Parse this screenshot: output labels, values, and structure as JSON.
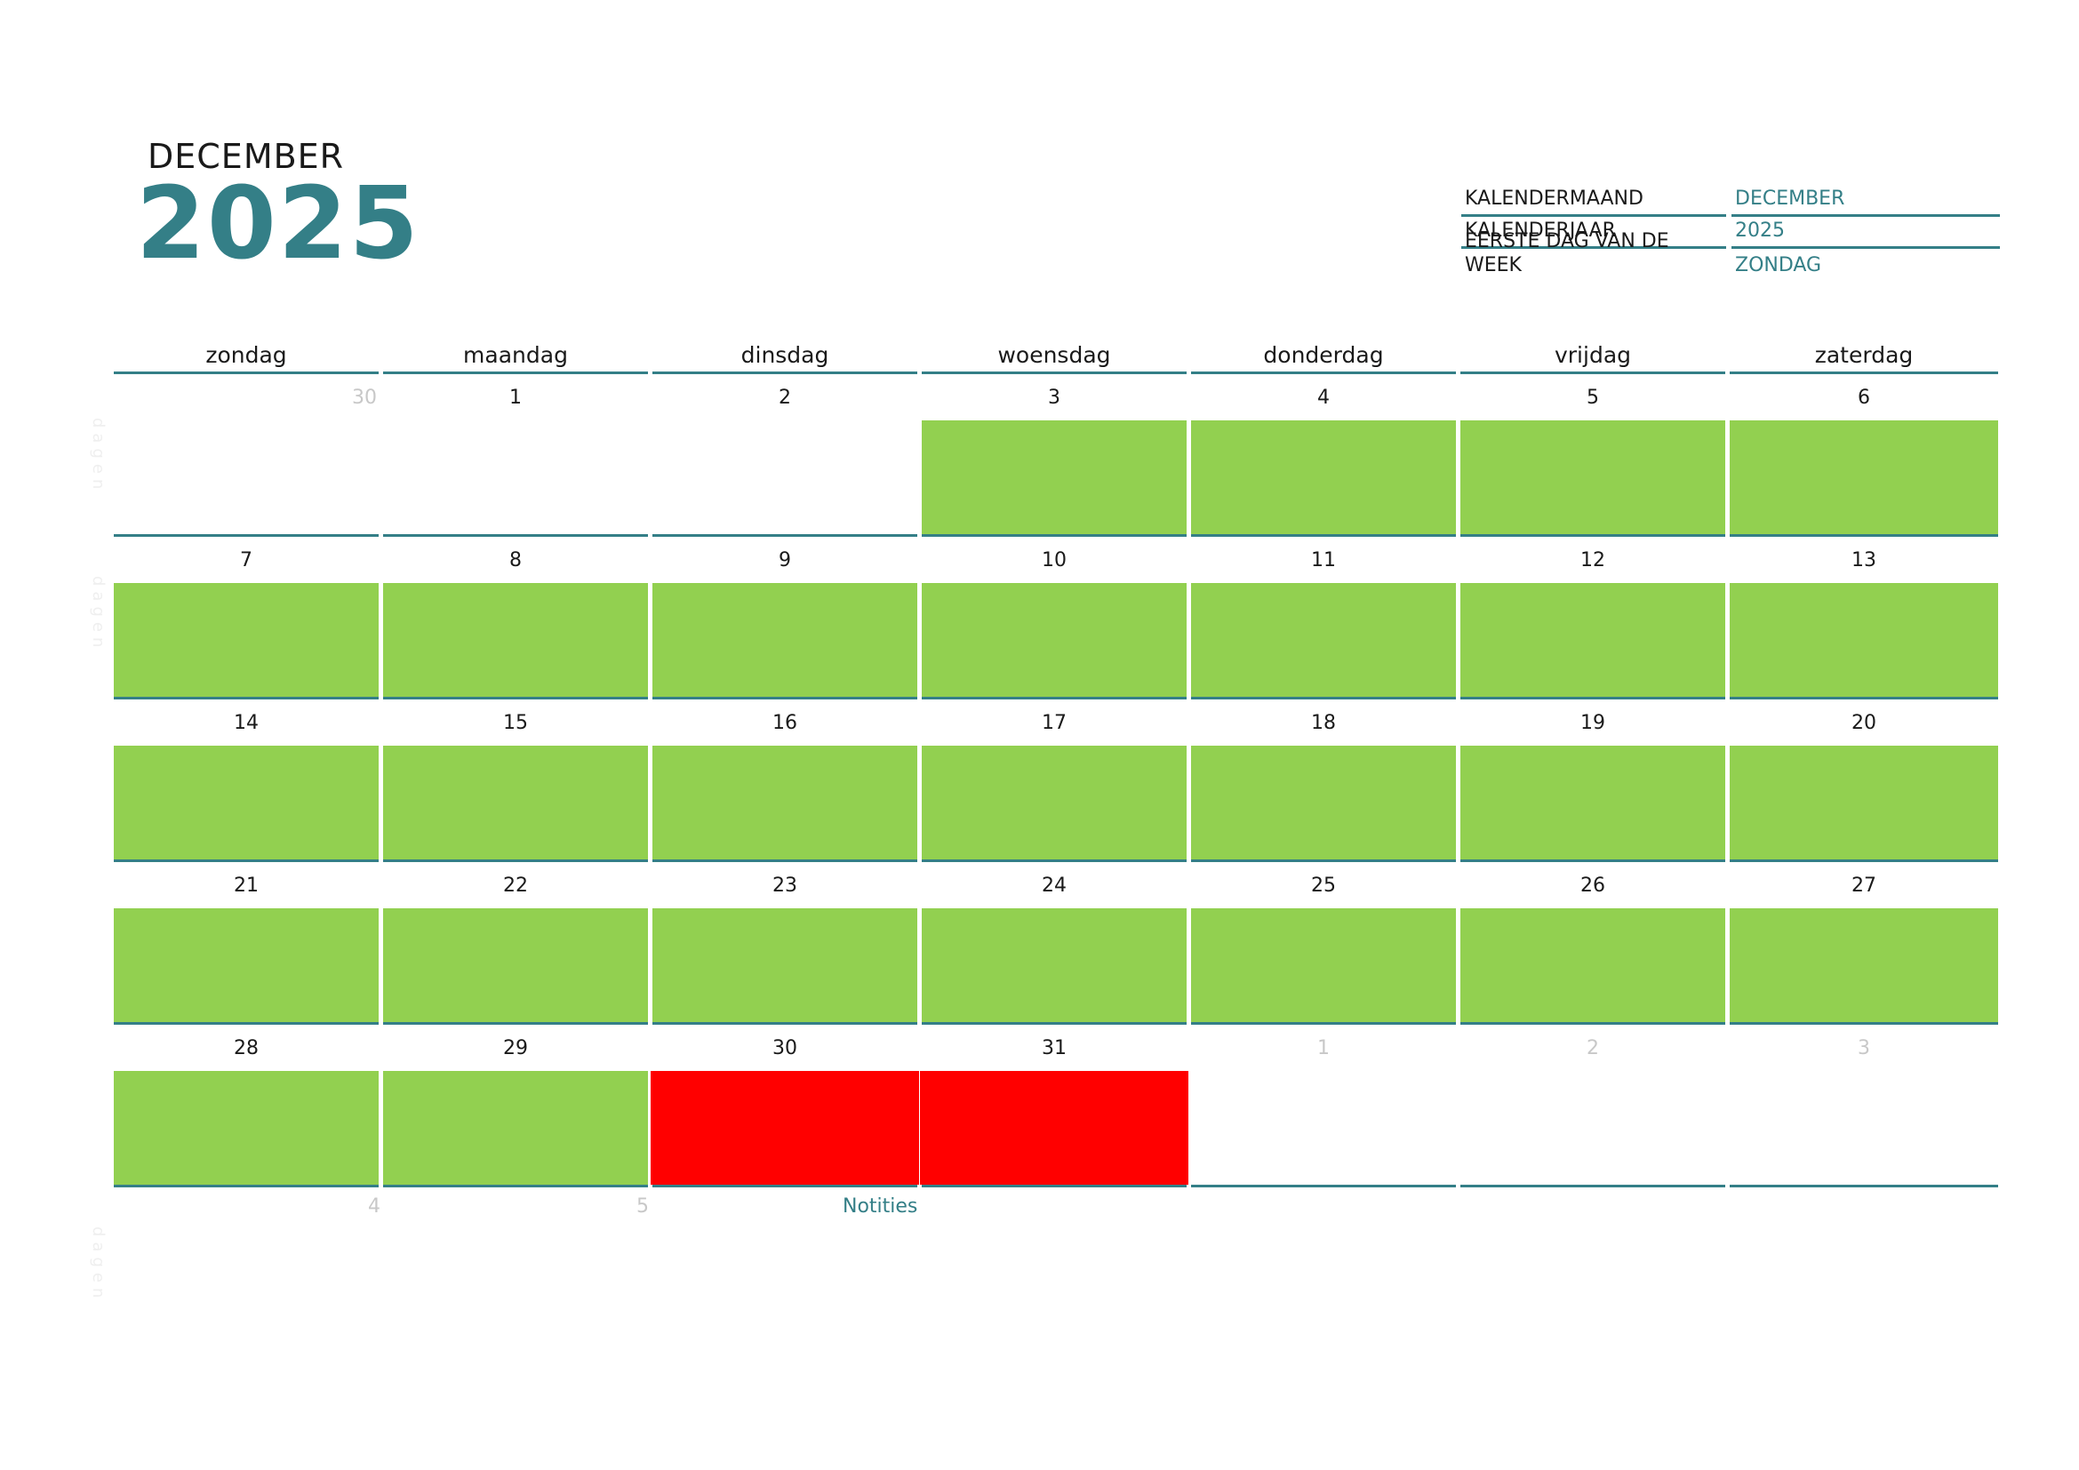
{
  "header": {
    "month": "DECEMBER",
    "year": "2025"
  },
  "settings": [
    {
      "label": "KALENDERMAAND",
      "value": "DECEMBER"
    },
    {
      "label": "KALENDERJAAR",
      "value": "2025"
    },
    {
      "label": "EERSTE DAG VAN DE WEEK",
      "value": "ZONDAG"
    }
  ],
  "weekdays": [
    "zondag",
    "maandag",
    "dinsdag",
    "woensdag",
    "donderdag",
    "vrijdag",
    "zaterdag"
  ],
  "colors": {
    "accent": "#347f87",
    "green": "#92d050",
    "red": "#ff0000",
    "muted": "#c8c8c8"
  },
  "weeks": [
    [
      {
        "day": "30",
        "out": true,
        "fill": ""
      },
      {
        "day": "1",
        "fill": ""
      },
      {
        "day": "2",
        "fill": ""
      },
      {
        "day": "3",
        "fill": "green"
      },
      {
        "day": "4",
        "fill": "green"
      },
      {
        "day": "5",
        "fill": "green"
      },
      {
        "day": "6",
        "fill": "green"
      }
    ],
    [
      {
        "day": "7",
        "fill": "green"
      },
      {
        "day": "8",
        "fill": "green"
      },
      {
        "day": "9",
        "fill": "green"
      },
      {
        "day": "10",
        "fill": "green"
      },
      {
        "day": "11",
        "fill": "green"
      },
      {
        "day": "12",
        "fill": "green"
      },
      {
        "day": "13",
        "fill": "green"
      }
    ],
    [
      {
        "day": "14",
        "fill": "green"
      },
      {
        "day": "15",
        "fill": "green"
      },
      {
        "day": "16",
        "fill": "green"
      },
      {
        "day": "17",
        "fill": "green"
      },
      {
        "day": "18",
        "fill": "green"
      },
      {
        "day": "19",
        "fill": "green"
      },
      {
        "day": "20",
        "fill": "green"
      }
    ],
    [
      {
        "day": "21",
        "fill": "green"
      },
      {
        "day": "22",
        "fill": "green"
      },
      {
        "day": "23",
        "fill": "green"
      },
      {
        "day": "24",
        "fill": "green"
      },
      {
        "day": "25",
        "fill": "green"
      },
      {
        "day": "26",
        "fill": "green"
      },
      {
        "day": "27",
        "fill": "green"
      }
    ],
    [
      {
        "day": "28",
        "fill": "green"
      },
      {
        "day": "29",
        "fill": "green"
      },
      {
        "day": "30",
        "fill": "red"
      },
      {
        "day": "31",
        "fill": "red"
      },
      {
        "day": "1",
        "out": true,
        "fill": ""
      },
      {
        "day": "2",
        "out": true,
        "fill": ""
      },
      {
        "day": "3",
        "out": true,
        "fill": ""
      }
    ]
  ],
  "below": {
    "day4": "4",
    "day5": "5",
    "notes_label": "Notities"
  },
  "ghost_text": "dagen"
}
